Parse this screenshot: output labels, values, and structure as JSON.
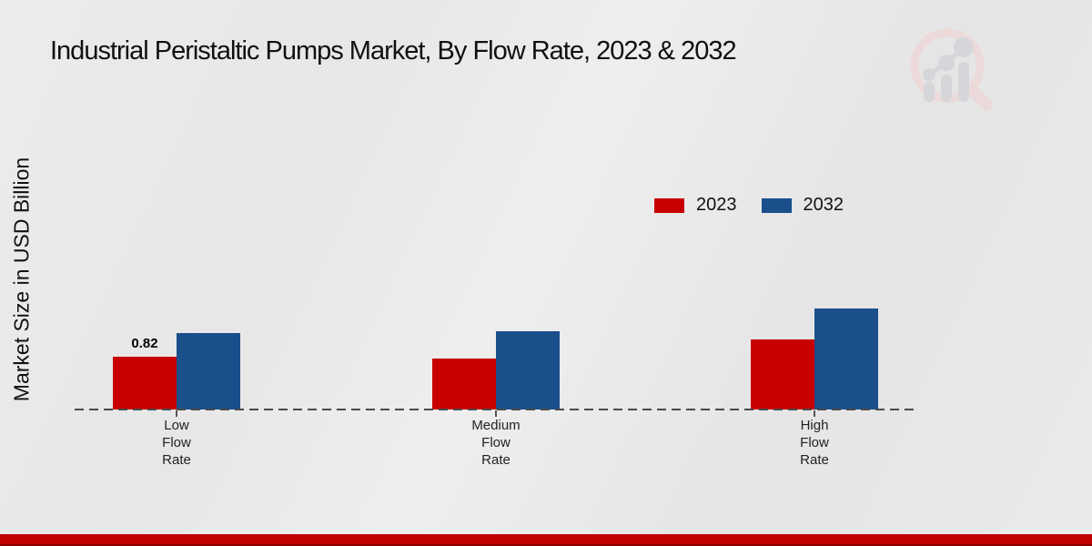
{
  "title": "Industrial Peristaltic Pumps Market, By Flow Rate, 2023 & 2032",
  "ylabel": "Market Size in USD Billion",
  "colors": {
    "series_2023": "#c80000",
    "series_2032": "#1a4f8c",
    "footer_band": "#c00000",
    "axis_line": "#4a4a4a"
  },
  "legend": {
    "items": [
      {
        "label": "2023",
        "color": "#c80000"
      },
      {
        "label": "2032",
        "color": "#1a4f8c"
      }
    ]
  },
  "chart_data": {
    "type": "bar",
    "categories": [
      "Low Flow Rate",
      "Medium Flow Rate",
      "High Flow Rate"
    ],
    "category_label_lines": [
      [
        "Low",
        "Flow",
        "Rate"
      ],
      [
        "Medium",
        "Flow",
        "Rate"
      ],
      [
        "High",
        "Flow",
        "Rate"
      ]
    ],
    "series": [
      {
        "name": "2023",
        "color": "#c80000",
        "values": [
          0.82,
          0.79,
          1.09
        ]
      },
      {
        "name": "2032",
        "color": "#1a4f8c",
        "values": [
          1.19,
          1.22,
          1.58
        ]
      }
    ],
    "data_labels": [
      {
        "series": "2023",
        "category": "Low Flow Rate",
        "text": "0.82"
      }
    ],
    "title": "Industrial Peristaltic Pumps Market, By Flow Rate, 2023 & 2032",
    "xlabel": "",
    "ylabel": "Market Size in USD Billion",
    "ylim": [
      0,
      2
    ],
    "grid": false,
    "legend_position": "upper-right"
  }
}
